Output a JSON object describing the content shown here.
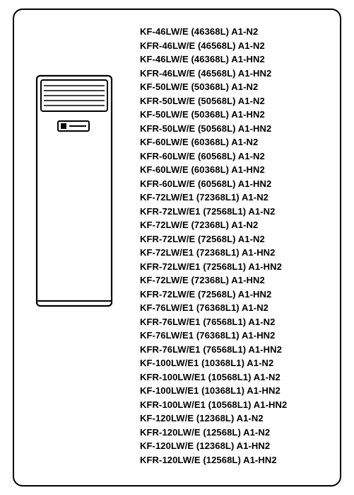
{
  "models": [
    "KF-46LW/E (46368L) A1-N2",
    "KFR-46LW/E (46568L) A1-N2",
    "KF-46LW/E (46368L) A1-HN2",
    "KFR-46LW/E (46568L) A1-HN2",
    "KF-50LW/E (50368L) A1-N2",
    "KFR-50LW/E (50568L) A1-N2",
    "KF-50LW/E (50368L) A1-HN2",
    "KFR-50LW/E (50568L) A1-HN2",
    "KF-60LW/E (60368L) A1-N2",
    "KFR-60LW/E (60568L) A1-N2",
    "KF-60LW/E (60368L) A1-HN2",
    "KFR-60LW/E (60568L) A1-HN2",
    "KF-72LW/E1 (72368L1) A1-N2",
    "KFR-72LW/E1 (72568L1) A1-N2",
    "KF-72LW/E (72368L) A1-N2",
    "KFR-72LW/E (72568L) A1-N2",
    "KF-72LW/E1 (72368L1) A1-HN2",
    "KFR-72LW/E1 (72568L1) A1-HN2",
    "KF-72LW/E (72368L) A1-HN2",
    "KFR-72LW/E (72568L) A1-HN2",
    "KF-76LW/E1 (76368L1) A1-N2",
    "KFR-76LW/E1 (76568L1) A1-N2",
    "KF-76LW/E1 (76368L1) A1-HN2",
    "KFR-76LW/E1 (76568L1) A1-HN2",
    "KF-100LW/E1 (10368L1) A1-N2",
    "KFR-100LW/E1 (10568L1) A1-N2",
    "KF-100LW/E1 (10368L1) A1-HN2",
    "KFR-100LW/E1 (10568L1) A1-HN2",
    "KF-120LW/E (12368L) A1-N2",
    "KFR-120LW/E (12568L) A1-N2",
    "KF-120LW/E (12368L) A1-HN2",
    "KFR-120LW/E (12568L) A1-HN2"
  ],
  "figure": {
    "outline_color": "#000000",
    "fill_color": "#ffffff",
    "stroke_width": 2.2
  }
}
